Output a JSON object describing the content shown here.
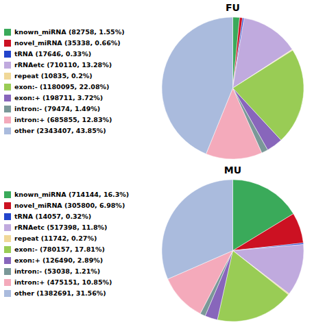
{
  "chart_data": [
    {
      "type": "pie",
      "title": "FU",
      "categories": [
        "known_miRNA (82758, 1.55%)",
        "novel_miRNA (35338, 0.66%)",
        "tRNA (17646, 0.33%)",
        "rRNAetc (710110, 13.28%)",
        "repeat (10835, 0.2%)",
        "exon:- (1180095, 22.08%)",
        "exon:+ (198711, 3.72%)",
        "intron:- (79474, 1.49%)",
        "intron:+ (685855, 12.83%)",
        "other (2343407, 43.85%)"
      ],
      "values": [
        1.55,
        0.66,
        0.33,
        13.28,
        0.2,
        22.08,
        3.72,
        1.49,
        12.83,
        43.85
      ],
      "colors": [
        "#3aaa5a",
        "#cc1122",
        "#2244cc",
        "#c0aade",
        "#f0d898",
        "#99cc55",
        "#8866bb",
        "#7a9898",
        "#f4aabb",
        "#aabbdd"
      ],
      "legend": "left"
    },
    {
      "type": "pie",
      "title": "MU",
      "categories": [
        "known_miRNA (714144, 16.3%)",
        "novel_miRNA (305800, 6.98%)",
        "tRNA (14057, 0.32%)",
        "rRNAetc (517398, 11.8%)",
        "repeat (11742, 0.27%)",
        "exon:- (780157, 17.81%)",
        "exon:+ (126490, 2.89%)",
        "intron:- (53038, 1.21%)",
        "intron:+ (475151, 10.85%)",
        "other (1382691, 31.56%)"
      ],
      "values": [
        16.3,
        6.98,
        0.32,
        11.8,
        0.27,
        17.81,
        2.89,
        1.21,
        10.85,
        31.56
      ],
      "colors": [
        "#3aaa5a",
        "#cc1122",
        "#2244cc",
        "#c0aade",
        "#f0d898",
        "#99cc55",
        "#8866bb",
        "#7a9898",
        "#f4aabb",
        "#aabbdd"
      ],
      "legend": "left"
    }
  ]
}
